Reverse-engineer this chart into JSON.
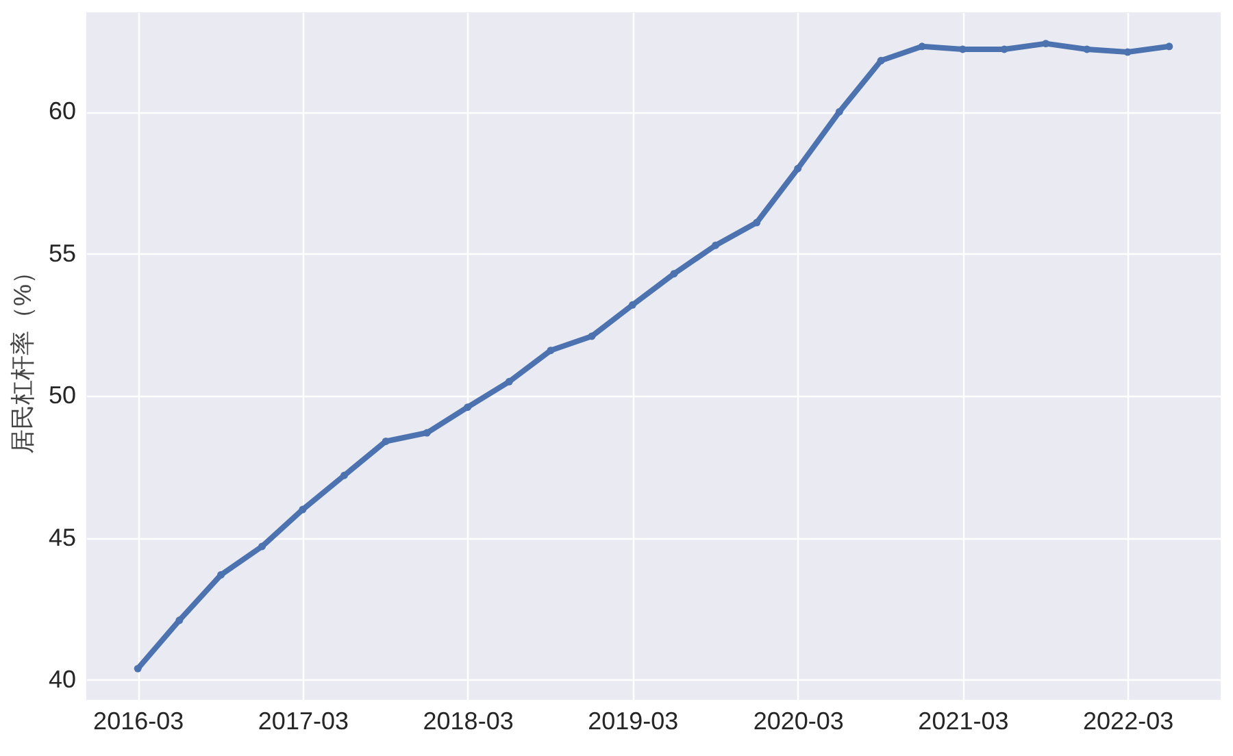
{
  "chart_data": {
    "type": "line",
    "ylabel": "居民杠杆率（%）",
    "x": [
      "2016-03",
      "2016-06",
      "2016-09",
      "2016-12",
      "2017-03",
      "2017-06",
      "2017-09",
      "2017-12",
      "2018-03",
      "2018-06",
      "2018-09",
      "2018-12",
      "2019-03",
      "2019-06",
      "2019-09",
      "2019-12",
      "2020-03",
      "2020-06",
      "2020-09",
      "2020-12",
      "2021-03",
      "2021-06",
      "2021-09",
      "2021-12",
      "2022-03",
      "2022-06"
    ],
    "series": [
      {
        "color": "#4c72b0",
        "values": [
          40.4,
          42.1,
          43.7,
          44.7,
          46.0,
          47.2,
          48.4,
          48.7,
          49.6,
          50.5,
          51.6,
          52.1,
          53.2,
          54.3,
          55.3,
          56.1,
          58.0,
          60.0,
          61.8,
          62.3,
          62.2,
          62.2,
          62.4,
          62.2,
          62.1,
          62.3
        ]
      }
    ],
    "xlim": [
      "2015-11-08",
      "2022-09-23"
    ],
    "ylim": [
      39.3,
      63.5
    ],
    "xticks": [
      "2016-03",
      "2017-03",
      "2018-03",
      "2019-03",
      "2020-03",
      "2021-03",
      "2022-03"
    ],
    "yticks": [
      40,
      45,
      50,
      55,
      60
    ],
    "grid": true,
    "marker": "circle",
    "line_style": "solid"
  }
}
